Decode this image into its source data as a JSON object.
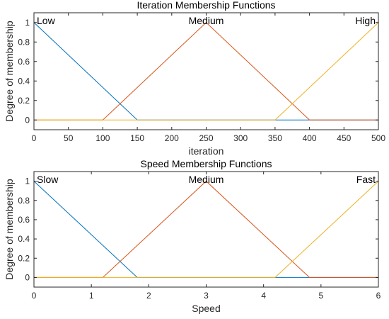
{
  "chart_data": [
    {
      "type": "line",
      "title": "Iteration Membership Functions",
      "xlabel": "iteration",
      "ylabel": "Degree of membership",
      "xlim": [
        0,
        500
      ],
      "ylim": [
        -0.1,
        1.1
      ],
      "xticks": [
        0,
        50,
        100,
        150,
        200,
        250,
        300,
        350,
        400,
        450,
        500
      ],
      "yticks": [
        0,
        0.2,
        0.4,
        0.6,
        0.8,
        1
      ],
      "xtick_labels": [
        "0",
        "50",
        "100",
        "150",
        "200",
        "250",
        "300",
        "350",
        "400",
        "450",
        "500"
      ],
      "ytick_labels": [
        "0",
        "0.2",
        "0.4",
        "0.6",
        "0.8",
        "1"
      ],
      "grid": false,
      "series": [
        {
          "name": "Low",
          "color": "#0072BD",
          "x": [
            0,
            150,
            500
          ],
          "y": [
            1,
            0,
            0
          ],
          "label_anchor": "start"
        },
        {
          "name": "Medium",
          "color": "#D95319",
          "x": [
            0,
            100,
            250,
            400,
            500
          ],
          "y": [
            0,
            0,
            1,
            0,
            0
          ],
          "label_anchor": "middle"
        },
        {
          "name": "High",
          "color": "#EDB120",
          "x": [
            0,
            350,
            500
          ],
          "y": [
            0,
            0,
            1
          ],
          "label_anchor": "end"
        }
      ]
    },
    {
      "type": "line",
      "title": "Speed Membership Functions",
      "xlabel": "Speed",
      "ylabel": "Degree of membership",
      "xlim": [
        0,
        6
      ],
      "ylim": [
        -0.1,
        1.1
      ],
      "xticks": [
        0,
        1,
        2,
        3,
        4,
        5,
        6
      ],
      "yticks": [
        0,
        0.2,
        0.4,
        0.6,
        0.8,
        1
      ],
      "xtick_labels": [
        "0",
        "1",
        "2",
        "3",
        "4",
        "5",
        "6"
      ],
      "ytick_labels": [
        "0",
        "0.2",
        "0.4",
        "0.6",
        "0.8",
        "1"
      ],
      "grid": false,
      "series": [
        {
          "name": "Slow",
          "color": "#0072BD",
          "x": [
            0,
            1.8,
            6
          ],
          "y": [
            1,
            0,
            0
          ],
          "label_anchor": "start"
        },
        {
          "name": "Medium",
          "color": "#D95319",
          "x": [
            0,
            1.2,
            3,
            4.8,
            6
          ],
          "y": [
            0,
            0,
            1,
            0,
            0
          ],
          "label_anchor": "middle"
        },
        {
          "name": "Fast",
          "color": "#EDB120",
          "x": [
            0,
            4.2,
            6
          ],
          "y": [
            0,
            0,
            1
          ],
          "label_anchor": "end"
        }
      ]
    }
  ]
}
